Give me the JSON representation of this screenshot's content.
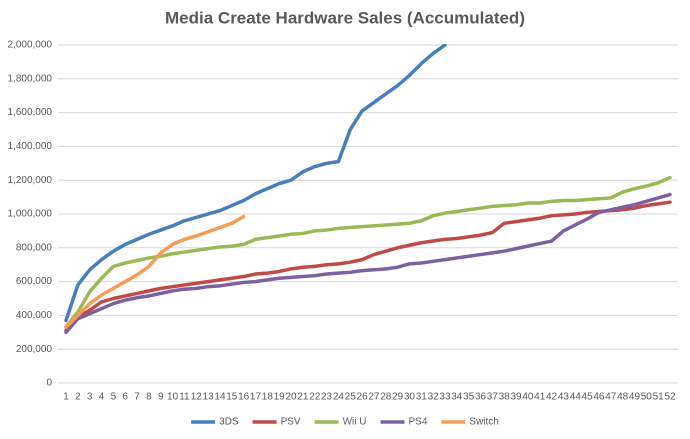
{
  "chart_data": {
    "type": "line",
    "title": "Media Create Hardware Sales (Accumulated)",
    "categories": [
      "1",
      "2",
      "3",
      "4",
      "5",
      "6",
      "7",
      "8",
      "9",
      "10",
      "11",
      "12",
      "13",
      "14",
      "15",
      "16",
      "17",
      "18",
      "19",
      "20",
      "21",
      "22",
      "23",
      "24",
      "25",
      "26",
      "27",
      "28",
      "29",
      "30",
      "31",
      "32",
      "33",
      "34",
      "35",
      "36",
      "37",
      "38",
      "39",
      "40",
      "41",
      "42",
      "43",
      "44",
      "45",
      "46",
      "47",
      "48",
      "49",
      "50",
      "51",
      "52"
    ],
    "series": [
      {
        "name": "3DS",
        "color": "#4a7ebb",
        "values": [
          370000,
          580000,
          670000,
          730000,
          780000,
          820000,
          850000,
          880000,
          905000,
          930000,
          960000,
          980000,
          1000000,
          1020000,
          1050000,
          1080000,
          1120000,
          1150000,
          1180000,
          1200000,
          1250000,
          1280000,
          1300000,
          1310000,
          1500000,
          1610000,
          1660000,
          1710000,
          1760000,
          1820000,
          1890000,
          1950000,
          2000000,
          null,
          null,
          null,
          null,
          null,
          null,
          null,
          null,
          null,
          null,
          null,
          null,
          null,
          null,
          null,
          null,
          null,
          null,
          null
        ]
      },
      {
        "name": "PSV",
        "color": "#be4b48",
        "values": [
          310000,
          390000,
          430000,
          480000,
          500000,
          515000,
          530000,
          545000,
          560000,
          570000,
          580000,
          590000,
          600000,
          610000,
          620000,
          630000,
          645000,
          650000,
          660000,
          675000,
          685000,
          690000,
          700000,
          705000,
          715000,
          730000,
          760000,
          780000,
          800000,
          815000,
          830000,
          840000,
          850000,
          855000,
          865000,
          875000,
          890000,
          945000,
          955000,
          965000,
          975000,
          990000,
          995000,
          1000000,
          1010000,
          1015000,
          1020000,
          1025000,
          1035000,
          1050000,
          1060000,
          1070000
        ]
      },
      {
        "name": "Wii U",
        "color": "#98b954",
        "values": [
          330000,
          420000,
          540000,
          620000,
          690000,
          710000,
          725000,
          740000,
          750000,
          765000,
          775000,
          785000,
          795000,
          805000,
          810000,
          820000,
          850000,
          860000,
          870000,
          880000,
          885000,
          900000,
          905000,
          915000,
          920000,
          925000,
          930000,
          935000,
          940000,
          945000,
          960000,
          990000,
          1005000,
          1015000,
          1025000,
          1035000,
          1045000,
          1050000,
          1055000,
          1065000,
          1065000,
          1075000,
          1080000,
          1080000,
          1085000,
          1090000,
          1095000,
          1130000,
          1150000,
          1165000,
          1185000,
          1215000
        ]
      },
      {
        "name": "PS4",
        "color": "#7d60a0",
        "values": [
          300000,
          380000,
          410000,
          440000,
          470000,
          490000,
          505000,
          515000,
          530000,
          545000,
          555000,
          560000,
          570000,
          575000,
          585000,
          595000,
          600000,
          610000,
          620000,
          625000,
          630000,
          635000,
          645000,
          650000,
          655000,
          665000,
          670000,
          675000,
          685000,
          705000,
          710000,
          720000,
          730000,
          740000,
          750000,
          760000,
          770000,
          780000,
          795000,
          810000,
          825000,
          840000,
          900000,
          935000,
          970000,
          1010000,
          1025000,
          1040000,
          1055000,
          1075000,
          1095000,
          1115000
        ]
      },
      {
        "name": "Switch",
        "color": "#f59d56",
        "values": [
          330000,
          400000,
          470000,
          520000,
          560000,
          600000,
          640000,
          690000,
          770000,
          820000,
          850000,
          870000,
          895000,
          920000,
          945000,
          985000,
          null,
          null,
          null,
          null,
          null,
          null,
          null,
          null,
          null,
          null,
          null,
          null,
          null,
          null,
          null,
          null,
          null,
          null,
          null,
          null,
          null,
          null,
          null,
          null,
          null,
          null,
          null,
          null,
          null,
          null,
          null,
          null,
          null,
          null,
          null,
          null
        ]
      }
    ],
    "ylim": [
      0,
      2000000
    ],
    "yticks": [
      0,
      {
        "value": 200000,
        "label": "200,000"
      },
      {
        "value": 400000,
        "label": "400,000"
      },
      {
        "value": 600000,
        "label": "600,000"
      },
      {
        "value": 800000,
        "label": "800,000"
      },
      {
        "value": 1000000,
        "label": "1,000,000"
      },
      {
        "value": 1200000,
        "label": "1,200,000"
      },
      {
        "value": 1400000,
        "label": "1,400,000"
      },
      {
        "value": 1600000,
        "label": "1,600,000"
      },
      {
        "value": 1800000,
        "label": "1,800,000"
      },
      {
        "value": 2000000,
        "label": "2,000,000"
      }
    ],
    "grid": true,
    "legend": "bottom"
  }
}
